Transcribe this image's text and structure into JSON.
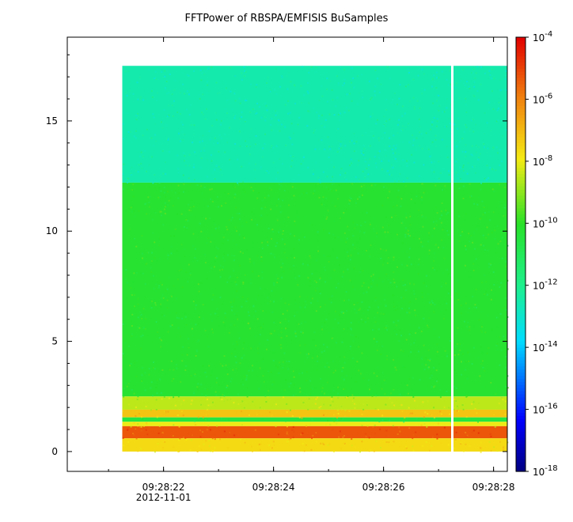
{
  "chart_data": {
    "type": "heatmap",
    "title": "FFTPower of RBSPA/EMFISIS  BuSamples",
    "xlabel": "",
    "ylabel": "",
    "date_label": "2012-11-01",
    "x_time_range": [
      "09:28:20.25",
      "09:28:28.25"
    ],
    "data_time_range": [
      "09:28:21.25",
      "09:28:28.25"
    ],
    "gap_time": "09:28:27.25",
    "x_tick_labels": [
      "09:28:22",
      "09:28:24",
      "09:28:26",
      "09:28:28"
    ],
    "y_range": [
      -0.9,
      18.8
    ],
    "y_ticks": [
      0,
      5,
      10,
      15
    ],
    "y_data_range": [
      0,
      17.5
    ],
    "colorbar": {
      "scale": "log",
      "range": [
        1e-18,
        0.0001
      ],
      "tick_bases": [
        "10",
        "10",
        "10",
        "10",
        "10",
        "10",
        "10",
        "10"
      ],
      "tick_exponents": [
        "-4",
        "-6",
        "-8",
        "-10",
        "-12",
        "-14",
        "-16",
        "-18"
      ],
      "tick_values_log10": [
        -4,
        -6,
        -8,
        -10,
        -12,
        -14,
        -16,
        -18
      ]
    },
    "intensity_bands": [
      {
        "y": [
          12.2,
          17.5
        ],
        "log10_power": -12.5
      },
      {
        "y": [
          2.5,
          12.2
        ],
        "log10_power": -10.2
      },
      {
        "y": [
          1.9,
          2.5
        ],
        "log10_power": -8.5
      },
      {
        "y": [
          1.55,
          1.9
        ],
        "log10_power": -7.2
      },
      {
        "y": [
          1.35,
          1.55
        ],
        "log10_power": -10.5
      },
      {
        "y": [
          1.15,
          1.35
        ],
        "log10_power": -8.0
      },
      {
        "y": [
          0.6,
          1.15
        ],
        "log10_power": -5.3
      },
      {
        "y": [
          0.0,
          0.6
        ],
        "log10_power": -7.6
      }
    ],
    "colors": {
      "green": "#2ee32e",
      "cyan_green": "#1ff08a",
      "yellow": "#f3e817",
      "orange": "#f18a12",
      "red": "#e8200c"
    }
  }
}
